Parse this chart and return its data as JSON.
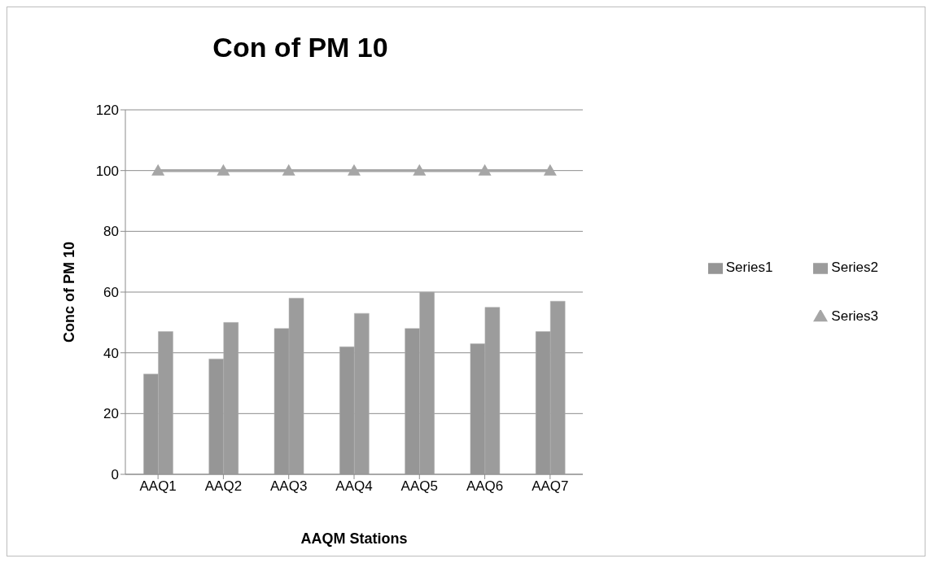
{
  "chart_data": {
    "type": "bar",
    "title": "Con of PM 10",
    "xlabel": "AAQM Stations",
    "ylabel": "Conc of PM 10",
    "categories": [
      "AAQ1",
      "AAQ2",
      "AAQ3",
      "AAQ4",
      "AAQ5",
      "AAQ6",
      "AAQ7"
    ],
    "series": [
      {
        "name": "Series1",
        "color": "#969696",
        "values": [
          33,
          38,
          48,
          42,
          48,
          43,
          47
        ]
      },
      {
        "name": "Series2",
        "color": "#9c9c9c",
        "values": [
          47,
          50,
          58,
          53,
          60,
          55,
          57
        ]
      },
      {
        "name": "Series3",
        "type": "line",
        "color": "#a6a6a6",
        "marker": "triangle",
        "values": [
          100,
          100,
          100,
          100,
          100,
          100,
          100
        ]
      }
    ],
    "ylim": [
      0,
      120
    ],
    "yticks": [
      0,
      20,
      40,
      60,
      80,
      100,
      120
    ],
    "grid": "y",
    "legend": "right"
  }
}
